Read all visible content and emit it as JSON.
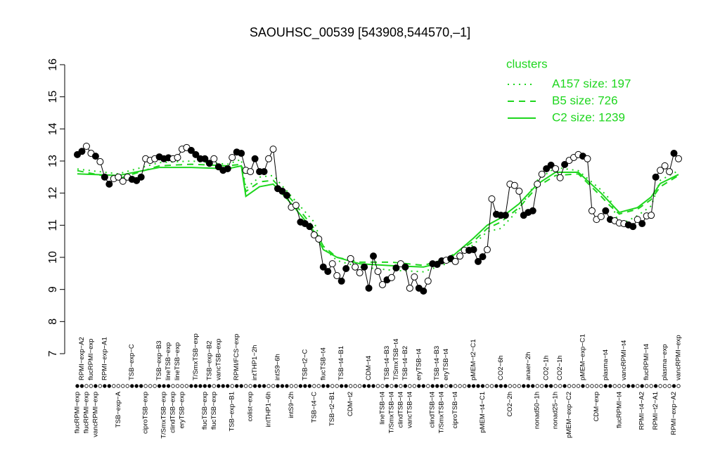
{
  "chart_data": {
    "type": "line",
    "title": "SAOUHSC_00539 [543908,544570,–1]",
    "ylim": [
      7,
      16
    ],
    "yticks": [
      7,
      8,
      9,
      10,
      11,
      12,
      13,
      14,
      15,
      16
    ],
    "point_color": "#000000",
    "categories": [
      "flucRPMI−exp",
      "RPMI−exp−A2",
      "flucRPMI−exp",
      "flucRPMI−exp",
      "vancRPMI−exp",
      null,
      "RPMI−exp−A1",
      null,
      null,
      "TSB−exp−A",
      null,
      null,
      "TSB−exp−C",
      null,
      null,
      "ciproTSB−exp",
      null,
      null,
      "TSB−exp−B3",
      "T/SmxTSB−exp",
      "lineTSB−exp",
      "clindTSB−exp",
      "lineTSB−exp",
      "eryTSB−exp",
      null,
      null,
      "T/SmxTSB−exp",
      null,
      "flucTSB−exp",
      "TSB−exp−B2",
      "flucTSB−exp",
      "vancTSB−exp",
      null,
      null,
      "TSB−exp−B1",
      "RPMI/FCS−exp",
      null,
      null,
      "colist−exp",
      "intTHP1−2h",
      null,
      null,
      "intTHP1−6h",
      null,
      "intS9−6h",
      null,
      null,
      "intS9−2h",
      null,
      null,
      "TSB−t2−C",
      null,
      "TSB−t4−C",
      null,
      "flucTSB−t4",
      null,
      "TSB−t2−B1",
      null,
      "TSB−t4−B1",
      null,
      "CDM−t2",
      null,
      null,
      null,
      "CDM−t4",
      null,
      null,
      "lineTSB−t4",
      "TSB−t4−B3",
      "T/SmxTSB−t4",
      "T/SmxTSB−t4",
      "clindTSB−t4",
      "TSB−t4−B2",
      "vancTSB−t4",
      null,
      "eryTSB−t4",
      null,
      null,
      "clindTSB−t4",
      "TSB−t4−B3",
      "T/SmxTSB−t4",
      "eryTSB−t4",
      null,
      "ciproTSB−t4",
      null,
      null,
      null,
      "pMEM−t2−C1",
      null,
      "pMEM−t4−C1",
      null,
      null,
      null,
      "CO2−6h",
      null,
      "CO2−2h",
      null,
      null,
      null,
      "anaer−2h",
      null,
      "nonad50−1h",
      null,
      "CO2−1h",
      null,
      "nonad25−1h",
      "CO2−1h",
      null,
      "pMEM−exp−C2",
      null,
      null,
      "pMEM−exp−C1",
      null,
      null,
      "CDM−exp",
      null,
      "plasma−t4",
      null,
      null,
      "flucRPMI−t4",
      "vancRPMI−t4",
      null,
      null,
      null,
      "RPMI−t4−A2",
      "flucRPMI−t4",
      null,
      "RPMI−t2−A1",
      null,
      "plasma−exp",
      null,
      "RPMI−exp−A2",
      "vancRPMI−exp"
    ],
    "values": [
      13.2,
      13.3,
      13.46,
      13.24,
      13.15,
      12.98,
      12.5,
      12.28,
      12.45,
      12.5,
      12.37,
      12.5,
      12.43,
      12.39,
      12.5,
      13.07,
      13.02,
      13.07,
      13.13,
      13.07,
      13.1,
      13.07,
      13.11,
      13.37,
      13.42,
      13.33,
      13.2,
      13.07,
      13.07,
      12.93,
      13.07,
      12.82,
      12.71,
      12.76,
      13.11,
      13.28,
      13.24,
      12.71,
      12.67,
      13.07,
      12.67,
      12.67,
      13.07,
      13.37,
      12.14,
      12.06,
      11.93,
      11.56,
      11.62,
      11.1,
      11.05,
      10.96,
      10.7,
      10.57,
      9.7,
      9.56,
      9.8,
      9.43,
      9.26,
      9.65,
      9.96,
      9.7,
      9.52,
      9.7,
      9.04,
      10.04,
      9.56,
      9.15,
      9.3,
      9.37,
      9.67,
      9.8,
      9.7,
      9.04,
      9.39,
      9.04,
      8.95,
      9.26,
      9.8,
      9.78,
      9.89,
      9.91,
      9.96,
      9.87,
      10.04,
      10.22,
      10.22,
      10.24,
      9.87,
      10.02,
      10.24,
      11.82,
      11.34,
      11.31,
      11.31,
      12.28,
      12.24,
      12.06,
      11.31,
      11.4,
      11.45,
      12.28,
      12.59,
      12.76,
      12.87,
      12.76,
      12.48,
      12.89,
      13.02,
      13.11,
      13.2,
      13.15,
      13.07,
      11.45,
      11.18,
      11.27,
      11.45,
      11.18,
      11.14,
      11.07,
      11.05,
      11.01,
      10.96,
      11.18,
      11.05,
      11.29,
      11.31,
      12.5,
      12.71,
      12.85,
      12.67,
      13.24,
      13.07
    ],
    "filled": [
      true,
      true,
      false,
      false,
      true,
      false,
      true,
      true,
      false,
      false,
      false,
      false,
      true,
      true,
      true,
      false,
      false,
      false,
      true,
      true,
      true,
      false,
      false,
      false,
      false,
      true,
      true,
      true,
      true,
      true,
      false,
      true,
      true,
      true,
      false,
      true,
      true,
      false,
      false,
      true,
      true,
      true,
      false,
      false,
      true,
      true,
      true,
      false,
      false,
      true,
      true,
      true,
      false,
      false,
      true,
      true,
      false,
      false,
      true,
      true,
      false,
      false,
      false,
      true,
      true,
      true,
      false,
      false,
      true,
      false,
      true,
      false,
      true,
      false,
      false,
      true,
      true,
      false,
      true,
      true,
      true,
      false,
      true,
      false,
      false,
      false,
      true,
      true,
      true,
      true,
      false,
      false,
      true,
      true,
      true,
      false,
      false,
      false,
      true,
      true,
      true,
      false,
      false,
      true,
      true,
      false,
      false,
      true,
      false,
      false,
      false,
      true,
      false,
      false,
      false,
      false,
      true,
      true,
      false,
      false,
      false,
      true,
      true,
      false,
      true,
      false,
      false,
      true,
      false,
      false,
      false,
      true,
      false
    ],
    "legend_title": "clusters",
    "legend_color": "#1ed61e",
    "legend": "topright",
    "series": [
      {
        "name": "A157 size: 197",
        "color": "#1ed61e",
        "style": "dotted",
        "x": [
          0,
          9,
          18,
          25,
          33,
          36,
          37,
          40,
          43,
          47,
          52,
          54,
          57,
          62,
          69,
          76,
          81,
          87,
          90,
          93,
          97,
          101,
          105,
          110,
          115,
          117,
          119,
          123,
          126,
          128,
          132
        ],
        "values": [
          12.75,
          12.6,
          12.95,
          13.0,
          12.9,
          13.05,
          12.15,
          12.5,
          12.55,
          11.9,
          11.1,
          10.3,
          9.9,
          9.7,
          9.6,
          9.55,
          9.8,
          10.4,
          10.8,
          10.9,
          11.5,
          12.4,
          12.8,
          12.7,
          12.1,
          11.8,
          11.0,
          11.3,
          11.6,
          12.4,
          12.7
        ]
      },
      {
        "name": "B5 size: 726",
        "color": "#1ed61e",
        "style": "dashed",
        "x": [
          0,
          9,
          18,
          25,
          33,
          36,
          37,
          40,
          43,
          47,
          52,
          54,
          57,
          62,
          69,
          76,
          81,
          87,
          90,
          93,
          97,
          101,
          105,
          110,
          115,
          117,
          119,
          123,
          126,
          128,
          132
        ],
        "values": [
          12.7,
          12.45,
          12.85,
          12.9,
          12.85,
          12.9,
          12.05,
          12.35,
          12.4,
          11.8,
          10.9,
          10.35,
          10.0,
          9.85,
          9.85,
          9.75,
          9.95,
          10.5,
          10.9,
          11.1,
          11.55,
          12.2,
          12.55,
          12.6,
          11.9,
          11.6,
          11.35,
          11.5,
          11.8,
          12.2,
          12.55
        ]
      },
      {
        "name": "C2 size: 1239",
        "color": "#1ed61e",
        "style": "solid",
        "x": [
          0,
          9,
          18,
          25,
          33,
          36,
          37,
          40,
          43,
          47,
          52,
          54,
          57,
          62,
          69,
          76,
          81,
          87,
          90,
          93,
          97,
          101,
          105,
          110,
          115,
          117,
          119,
          123,
          126,
          128,
          132
        ],
        "values": [
          12.6,
          12.55,
          12.8,
          12.8,
          12.76,
          12.85,
          11.9,
          12.2,
          12.28,
          11.67,
          10.8,
          10.24,
          10.0,
          9.8,
          9.74,
          9.7,
          9.87,
          10.6,
          11.0,
          11.23,
          11.67,
          12.28,
          12.65,
          12.65,
          12.0,
          11.7,
          11.4,
          11.55,
          11.88,
          12.3,
          12.58
        ]
      }
    ]
  }
}
